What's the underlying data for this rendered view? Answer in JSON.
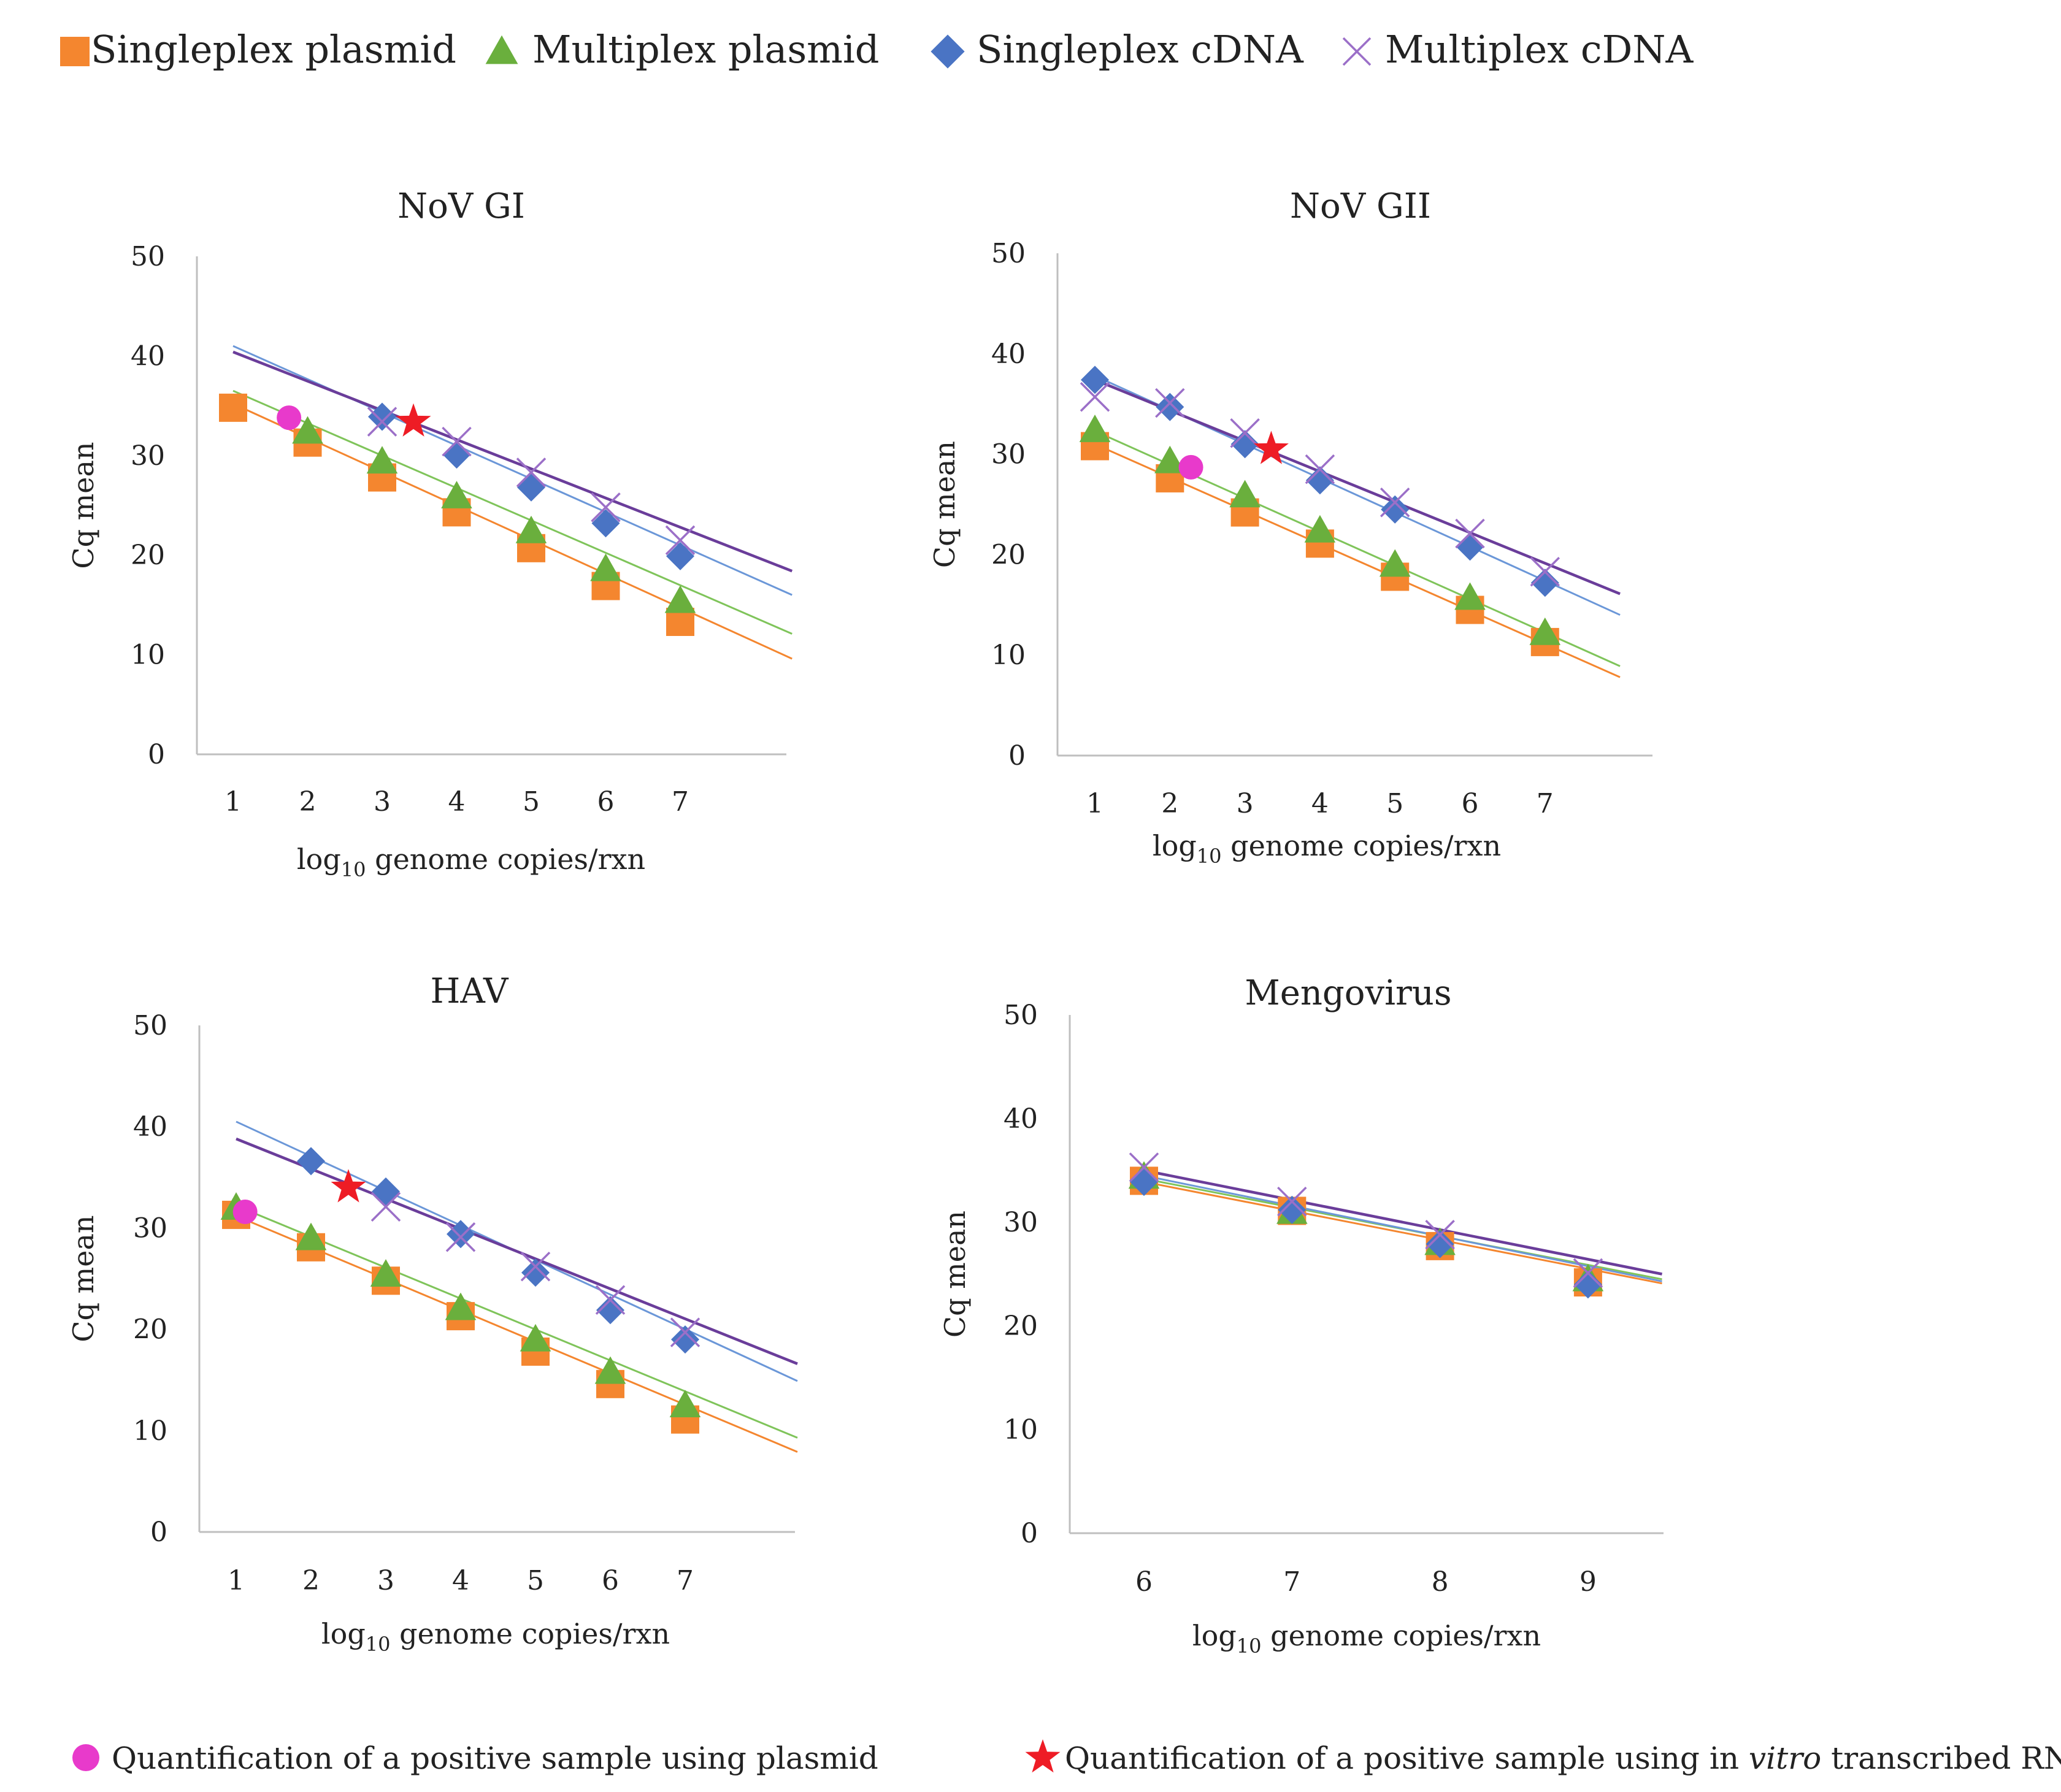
{
  "legend": {
    "items": [
      {
        "key": "singleplex_plasmid",
        "label": "Singleplex plasmid",
        "symbol": "square",
        "color": "#F4862F"
      },
      {
        "key": "multiplex_plasmid",
        "label": "Multiplex plasmid",
        "symbol": "triangle",
        "color": "#6AAF3D"
      },
      {
        "key": "singleplex_cdna",
        "label": "Singleplex cDNA",
        "symbol": "diamond",
        "color": "#4A74C4"
      },
      {
        "key": "multiplex_cdna",
        "label": "Multiplex cDNA",
        "symbol": "cross",
        "color": "#9B6FC8"
      }
    ]
  },
  "notes": {
    "plasmid": {
      "text": "Quantification of a positive sample using plasmid",
      "color": "#E83ACB",
      "symbol": "circle"
    },
    "rna": {
      "prefix": "Quantification of a positive sample using in ",
      "italic": "vitro",
      "suffix": " transcribed RNA",
      "color": "#EE1C25",
      "symbol": "star"
    }
  },
  "line_colors": {
    "singleplex_plasmid": "#F4862F",
    "multiplex_plasmid": "#7FC45A",
    "singleplex_cdna": "#6B97D8",
    "multiplex_cdna": "#6A3D9A"
  },
  "chart_data": [
    {
      "type": "scatter",
      "title": "NoV GI",
      "xlabel_main": "log",
      "xlabel_sub": "10",
      "xlabel_rest": " genome copies/rxn",
      "ylabel": "Cq mean",
      "x_ticks": [
        1,
        2,
        3,
        4,
        5,
        6,
        7
      ],
      "y_ticks": [
        0,
        10,
        20,
        30,
        40,
        50
      ],
      "xlim": [
        0.5,
        8.5
      ],
      "ylim": [
        0,
        50
      ],
      "series": [
        {
          "key": "singleplex_plasmid",
          "x": [
            1,
            2,
            3,
            4,
            5,
            6,
            7
          ],
          "y": [
            34.8,
            31.3,
            27.8,
            24.3,
            20.7,
            16.9,
            13.3
          ],
          "trend": [
            35.2,
            9.6
          ]
        },
        {
          "key": "multiplex_plasmid",
          "x": [
            2,
            3,
            4,
            5,
            6,
            7
          ],
          "y": [
            32.4,
            29.4,
            25.9,
            22.4,
            18.6,
            15.4
          ],
          "trend": [
            36.5,
            12.1
          ]
        },
        {
          "key": "singleplex_cdna",
          "x": [
            3,
            4,
            5,
            6,
            7
          ],
          "y": [
            33.9,
            30.1,
            26.8,
            23.2,
            19.9
          ],
          "trend": [
            41.0,
            16.0
          ]
        },
        {
          "key": "multiplex_cdna",
          "x": [
            3,
            4,
            5,
            6,
            7
          ],
          "y": [
            33.4,
            31.4,
            28.3,
            24.8,
            21.5
          ],
          "trend": [
            40.4,
            18.4
          ]
        }
      ],
      "markers": [
        {
          "kind": "plasmid",
          "x": 1.75,
          "y": 33.8
        },
        {
          "kind": "rna",
          "x": 3.42,
          "y": 33.4
        }
      ]
    },
    {
      "type": "scatter",
      "title": "NoV GII",
      "xlabel_main": "log",
      "xlabel_sub": "10",
      "xlabel_rest": " genome copies/rxn",
      "ylabel": "Cq mean",
      "x_ticks": [
        1,
        2,
        3,
        4,
        5,
        6,
        7
      ],
      "y_ticks": [
        0,
        10,
        20,
        30,
        40,
        50
      ],
      "xlim": [
        0.5,
        8.0
      ],
      "ylim": [
        0,
        50
      ],
      "series": [
        {
          "key": "singleplex_plasmid",
          "x": [
            1,
            2,
            3,
            4,
            5,
            6,
            7
          ],
          "y": [
            30.8,
            27.6,
            24.2,
            21.1,
            17.8,
            14.5,
            11.3
          ],
          "trend": [
            31.0,
            7.8
          ]
        },
        {
          "key": "multiplex_plasmid",
          "x": [
            1,
            2,
            3,
            4,
            5,
            6,
            7
          ],
          "y": [
            32.4,
            29.3,
            25.9,
            22.4,
            19.0,
            15.7,
            12.2
          ],
          "trend": [
            32.3,
            8.9
          ]
        },
        {
          "key": "singleplex_cdna",
          "x": [
            1,
            2,
            3,
            4,
            5,
            6,
            7
          ],
          "y": [
            37.4,
            34.7,
            31.0,
            27.4,
            24.5,
            20.8,
            17.2
          ],
          "trend": [
            37.8,
            14.0
          ]
        },
        {
          "key": "multiplex_cdna",
          "x": [
            1,
            2,
            3,
            4,
            5,
            6,
            7
          ],
          "y": [
            35.7,
            35.1,
            32.1,
            28.5,
            25.2,
            22.1,
            18.3
          ],
          "trend": [
            37.4,
            16.1
          ]
        }
      ],
      "markers": [
        {
          "kind": "plasmid",
          "x": 2.28,
          "y": 28.7
        },
        {
          "kind": "rna",
          "x": 3.35,
          "y": 30.5
        }
      ]
    },
    {
      "type": "scatter",
      "title": "HAV",
      "xlabel_main": "log",
      "xlabel_sub": "10",
      "xlabel_rest": " genome copies/rxn",
      "ylabel": "Cq mean",
      "x_ticks": [
        1,
        2,
        3,
        4,
        5,
        6,
        7
      ],
      "y_ticks": [
        0,
        10,
        20,
        30,
        40,
        50
      ],
      "xlim": [
        0.5,
        8.5
      ],
      "ylim": [
        0,
        50
      ],
      "series": [
        {
          "key": "singleplex_plasmid",
          "x": [
            1,
            2,
            3,
            4,
            5,
            6,
            7
          ],
          "y": [
            31.3,
            28.1,
            24.8,
            21.3,
            17.8,
            14.6,
            11.1
          ],
          "trend": [
            31.2,
            7.9
          ]
        },
        {
          "key": "multiplex_plasmid",
          "x": [
            1,
            2,
            3,
            4,
            5,
            6,
            7
          ],
          "y": [
            32.0,
            29.0,
            25.4,
            22.1,
            19.0,
            15.8,
            12.5
          ],
          "trend": [
            32.2,
            9.3
          ]
        },
        {
          "key": "singleplex_cdna",
          "x": [
            2,
            3,
            4,
            5,
            6,
            7
          ],
          "y": [
            36.6,
            33.6,
            29.4,
            25.6,
            21.9,
            19.0
          ],
          "trend": [
            40.5,
            14.9
          ]
        },
        {
          "key": "multiplex_cdna",
          "x": [
            3,
            4,
            5,
            6,
            7
          ],
          "y": [
            32.1,
            29.1,
            26.2,
            22.9,
            19.7
          ],
          "trend": [
            38.8,
            16.6
          ]
        }
      ],
      "markers": [
        {
          "kind": "plasmid",
          "x": 1.12,
          "y": 31.6
        },
        {
          "kind": "rna",
          "x": 2.5,
          "y": 34.0
        }
      ]
    },
    {
      "type": "scatter",
      "title": "Mengovirus",
      "xlabel_main": "log",
      "xlabel_sub": "10",
      "xlabel_rest": " genome copies/rxn",
      "ylabel": "Cq mean",
      "x_ticks": [
        6,
        7,
        8,
        9
      ],
      "y_ticks": [
        0,
        10,
        20,
        30,
        40,
        50
      ],
      "xlim": [
        5.5,
        9.5
      ],
      "ylim": [
        0,
        50
      ],
      "series": [
        {
          "key": "singleplex_plasmid",
          "x": [
            6,
            7,
            8,
            9
          ],
          "y": [
            34.0,
            31.1,
            27.7,
            24.2
          ],
          "trend": [
            33.9,
            24.1
          ]
        },
        {
          "key": "multiplex_plasmid",
          "x": [
            6,
            7,
            8,
            9
          ],
          "y": [
            34.4,
            31.0,
            28.0,
            24.5
          ],
          "trend": [
            34.2,
            24.5
          ]
        },
        {
          "key": "singleplex_cdna",
          "x": [
            6,
            7,
            8,
            9
          ],
          "y": [
            33.9,
            31.2,
            27.9,
            24.0
          ],
          "trend": [
            34.5,
            24.3
          ]
        },
        {
          "key": "multiplex_cdna",
          "x": [
            6,
            7,
            8,
            9
          ],
          "y": [
            35.3,
            32.0,
            28.8,
            25.1
          ],
          "trend": [
            35.0,
            25.0
          ]
        }
      ],
      "markers": []
    }
  ]
}
